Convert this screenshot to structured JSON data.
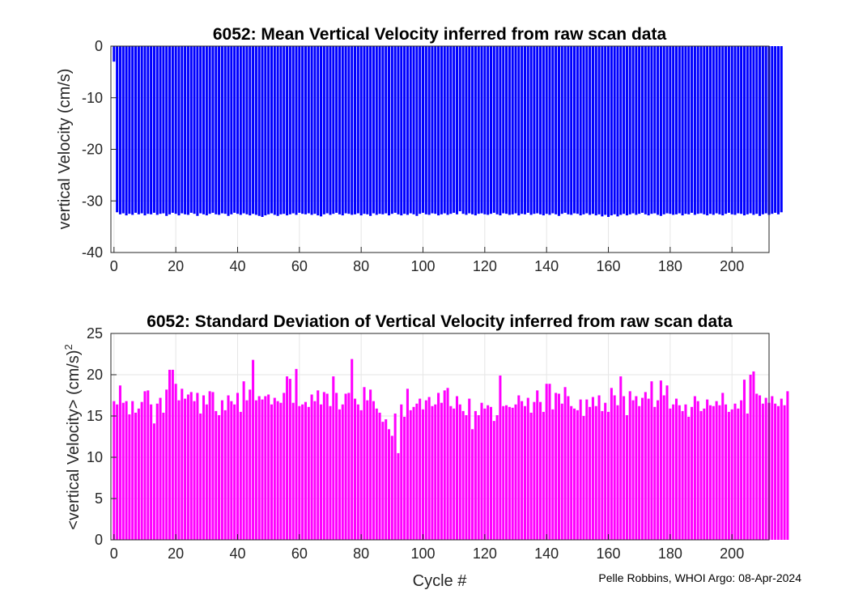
{
  "chart_data": [
    {
      "type": "bar",
      "title": "6052: Mean Vertical Velocity inferred from raw scan data",
      "xlabel": "",
      "ylabel": "vertical Velocity (cm/s)",
      "xlim": [
        -1,
        212
      ],
      "ylim": [
        -40,
        0
      ],
      "xticks": [
        "0",
        "20",
        "40",
        "60",
        "80",
        "100",
        "120",
        "140",
        "160",
        "180",
        "200"
      ],
      "yticks": [
        "0",
        "-10",
        "-20",
        "-30",
        "-40"
      ],
      "grid": true,
      "color": "#0000ff",
      "x_start": 0,
      "values": [
        -3,
        -32.2,
        -32.6,
        -32.4,
        -32.8,
        -32.5,
        -32.7,
        -32.3,
        -32.6,
        -32.4,
        -32.8,
        -32.5,
        -32.6,
        -32.3,
        -32.7,
        -32.5,
        -32.4,
        -32.9,
        -32.6,
        -32.3,
        -32.5,
        -32.8,
        -32.4,
        -32.6,
        -32.7,
        -32.3,
        -32.5,
        -32.9,
        -32.4,
        -32.6,
        -32.8,
        -32.5,
        -32.3,
        -32.6,
        -32.7,
        -32.4,
        -32.5,
        -32.9,
        -32.6,
        -32.3,
        -32.5,
        -32.7,
        -32.4,
        -32.6,
        -32.8,
        -32.5,
        -32.7,
        -32.9,
        -33.1,
        -32.8,
        -32.6,
        -32.4,
        -32.7,
        -32.9,
        -32.6,
        -32.5,
        -32.8,
        -32.6,
        -32.4,
        -32.7,
        -32.3,
        -32.5,
        -32.6,
        -32.4,
        -32.7,
        -32.5,
        -32.8,
        -33,
        -32.6,
        -32.4,
        -32.7,
        -32.5,
        -32.3,
        -32.6,
        -32.8,
        -32.4,
        -32.5,
        -32.7,
        -32.6,
        -32.4,
        -32.8,
        -32.5,
        -32.6,
        -32.9,
        -32.4,
        -32.7,
        -32.5,
        -32.6,
        -32.4,
        -32.8,
        -32.5,
        -32.3,
        -32.6,
        -32.8,
        -32.5,
        -32.7,
        -32.4,
        -32.6,
        -32.9,
        -32.5,
        -32.3,
        -32.6,
        -32.7,
        -32.4,
        -32.5,
        -32.8,
        -32.6,
        -32.4,
        -32.7,
        -32.5,
        -32.3,
        -32.6,
        -32,
        -32.5,
        -32.7,
        -32.4,
        -32.6,
        -32.8,
        -32.5,
        -32.4,
        -32.6,
        -32.7,
        -32.5,
        -32.3,
        -32.6,
        -32.8,
        -32.4,
        -32.5,
        -32.7,
        -32.6,
        -32.4,
        -32.8,
        -32.5,
        -32.6,
        -32.3,
        -32.7,
        -32.5,
        -32.4,
        -32.6,
        -32.8,
        -32.5,
        -32.7,
        -32.4,
        -32.6,
        -32.9,
        -32.5,
        -32.3,
        -32.6,
        -32.7,
        -32.4,
        -32.5,
        -32.8,
        -32.6,
        -32.4,
        -32.7,
        -32.5,
        -32.8,
        -32.6,
        -33,
        -32.7,
        -33.1,
        -32.8,
        -32.6,
        -33,
        -32.7,
        -32.5,
        -32.8,
        -32.6,
        -32.4,
        -32.7,
        -32.5,
        -32.3,
        -32.6,
        -32.8,
        -32.5,
        -32.4,
        -32.7,
        -32.9,
        -32.6,
        -32.4,
        -32.5,
        -32.7,
        -32.6,
        -32.4,
        -32.8,
        -32.5,
        -32.6,
        -32.3,
        -32.7,
        -32.5,
        -32.4,
        -32.6,
        -32.8,
        -32.5,
        -32.7,
        -32.4,
        -32.6,
        -32.8,
        -32.5,
        -32.3,
        -32.6,
        -32.7,
        -32.4,
        -32.5,
        -32.8,
        -32.6,
        -32.4,
        -32.7,
        -32.5,
        -32.9,
        -32.6,
        -32.4,
        -32.7,
        -32.5,
        -32.3,
        -32.6,
        -32.2
      ]
    },
    {
      "type": "bar",
      "title": "6052: Standard Deviation of Vertical Velocity inferred from raw scan data",
      "xlabel": "Cycle #",
      "ylabel": "<vertical Velocity> (cm/s)",
      "ylabel_superscript": "2",
      "xlim": [
        -1,
        212
      ],
      "ylim": [
        0,
        25
      ],
      "xticks": [
        "0",
        "20",
        "40",
        "60",
        "80",
        "100",
        "120",
        "140",
        "160",
        "180",
        "200"
      ],
      "yticks": [
        "0",
        "5",
        "10",
        "15",
        "20",
        "25"
      ],
      "grid": true,
      "color": "#ff00ff",
      "x_start": 0,
      "values": [
        16.8,
        16.4,
        18.7,
        16.6,
        16.8,
        15.2,
        16.8,
        15.4,
        15.9,
        16.7,
        18,
        18.1,
        16.4,
        14.1,
        16.5,
        17.2,
        15.4,
        18.2,
        20.6,
        20.6,
        18.9,
        16.9,
        18.3,
        17.1,
        17.6,
        17.9,
        16.8,
        17.8,
        15.3,
        17.5,
        16.4,
        18,
        17.9,
        15.6,
        15.1,
        16.9,
        15.7,
        17.5,
        16.8,
        16.4,
        17.8,
        15.5,
        19.2,
        16.9,
        18.2,
        21.8,
        16.9,
        17.4,
        17,
        17.4,
        17.6,
        16.4,
        17.2,
        16.8,
        16.6,
        17.8,
        19.8,
        19.5,
        16.6,
        20.7,
        16.2,
        16.4,
        16.7,
        16.1,
        17.6,
        16.8,
        18.1,
        16.4,
        17.9,
        17.7,
        16.2,
        19.8,
        17.8,
        15.8,
        16.4,
        17.7,
        17.8,
        21.9,
        17.1,
        16.4,
        15.7,
        18.5,
        16.9,
        18.2,
        16.8,
        15.9,
        15.4,
        14.3,
        14.6,
        13.4,
        12.6,
        15.3,
        10.5,
        16.4,
        14.9,
        18.3,
        15.7,
        16.1,
        16.5,
        17.1,
        15.8,
        16.9,
        17.3,
        16.2,
        16.4,
        17.8,
        16.6,
        18.1,
        18.4,
        16.2,
        15.9,
        17.4,
        16.4,
        15.6,
        15.1,
        17.1,
        13.4,
        15.6,
        15.1,
        16.6,
        15.9,
        16.3,
        16.1,
        14.4,
        15.1,
        19.9,
        16.2,
        16.3,
        16.1,
        16,
        16.4,
        17.5,
        16.8,
        16.2,
        17.2,
        15.4,
        16.7,
        18.1,
        16.7,
        15.5,
        18.9,
        18.9,
        15.8,
        17.8,
        17.7,
        16.5,
        18.5,
        17.4,
        16.2,
        15.9,
        15.7,
        17,
        15,
        17,
        16.1,
        17.3,
        16.2,
        17.5,
        15.6,
        16.6,
        15.5,
        18.4,
        17.5,
        16.3,
        19.8,
        17.4,
        15.1,
        18,
        16.9,
        17.4,
        16.2,
        17.2,
        17.9,
        17.1,
        19.2,
        16.1,
        16.9,
        19.3,
        17.5,
        18.7,
        15.9,
        16.4,
        17.1,
        16.3,
        15.6,
        16.4,
        14.9,
        16.1,
        17.4,
        16.8,
        15.6,
        15.9,
        17,
        16.3,
        16.2,
        16.8,
        16.3,
        17.8,
        16.4,
        15.5,
        15.8,
        16.5,
        15.9,
        16.9,
        19.4,
        15.3,
        20,
        20.4,
        17.7,
        17.5,
        16.5,
        17.2,
        16.6,
        17.4,
        16.5,
        16.2,
        17.1,
        16.3,
        18
      ]
    }
  ],
  "footer": {
    "credit": "Pelle Robbins, WHOI Argo: 08-Apr-2024"
  }
}
